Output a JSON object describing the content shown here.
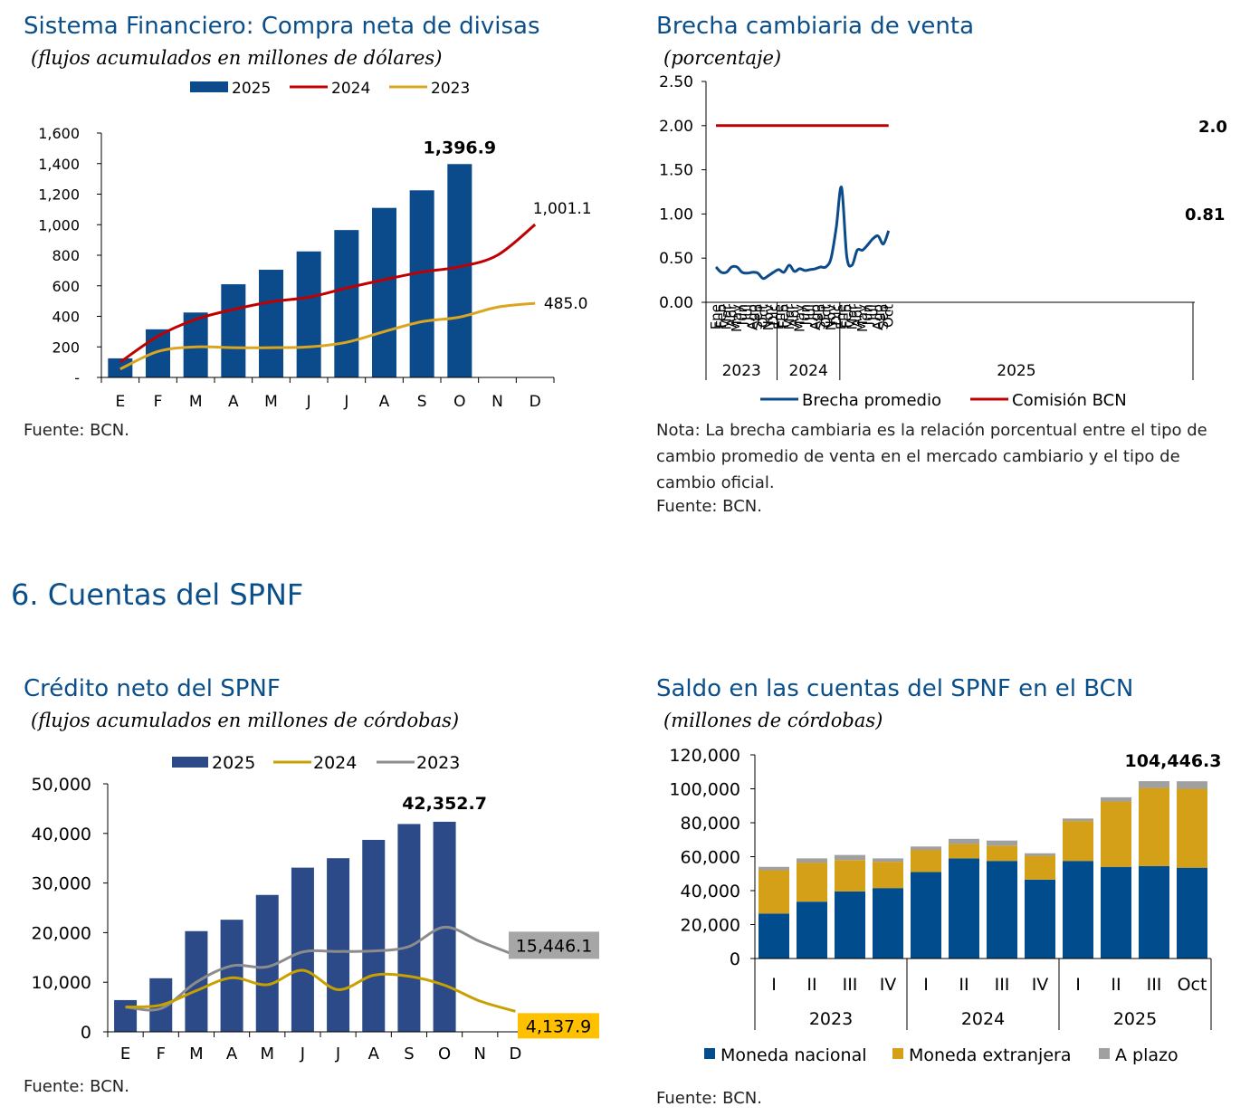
{
  "section_title": "6.  Cuentas del SPNF",
  "charts": {
    "divisas": {
      "title": "Sistema Financiero: Compra neta de divisas",
      "subtitle": "(flujos acumulados en millones de dólares)",
      "source": "Fuente: BCN."
    },
    "brecha": {
      "title": "Brecha cambiaria de venta",
      "subtitle": "(porcentaje)",
      "note": "Nota: La brecha cambiaria es la relación porcentual entre el tipo de cambio promedio de venta en el mercado cambiario y el tipo de cambio oficial.",
      "source": "Fuente: BCN."
    },
    "credito": {
      "title": "Crédito neto del SPNF",
      "subtitle": "(flujos acumulados en millones de córdobas)",
      "source": "Fuente: BCN."
    },
    "saldo": {
      "title": "Saldo en las cuentas del SPNF en el BCN",
      "subtitle": "(millones de córdobas)",
      "source": "Fuente: BCN."
    }
  },
  "colors": {
    "navy": "#0B4A8B",
    "red": "#C00000",
    "gold": "#DAA520",
    "title_blue": "#0B4F8A",
    "credit_bar": "#2B4A87",
    "credit_gold": "#C9A000",
    "gray": "#8C8C8C",
    "mn": "#004C8C",
    "me": "#D4A017",
    "plazo": "#A0A0A0"
  },
  "chart_data": [
    {
      "id": "divisas",
      "type": "bar",
      "categories": [
        "E",
        "F",
        "M",
        "A",
        "M",
        "J",
        "J",
        "A",
        "S",
        "O",
        "N",
        "D"
      ],
      "series": [
        {
          "name": "2025",
          "kind": "bar",
          "values": [
            125,
            315,
            425,
            610,
            705,
            825,
            965,
            1110,
            1225,
            1396.9,
            null,
            null
          ]
        },
        {
          "name": "2024",
          "kind": "line",
          "values": [
            100,
            270,
            380,
            445,
            495,
            525,
            585,
            640,
            690,
            725,
            800,
            1001.1
          ]
        },
        {
          "name": "2023",
          "kind": "line",
          "values": [
            55,
            170,
            200,
            195,
            195,
            200,
            230,
            300,
            365,
            395,
            460,
            485.0
          ]
        }
      ],
      "ylim": [
        0,
        1600
      ],
      "yticks": [
        0,
        200,
        400,
        600,
        800,
        1000,
        1200,
        1400,
        1600
      ],
      "ytick_labels": [
        "-",
        "200",
        "400",
        "600",
        "800",
        "1,000",
        "1,200",
        "1,400",
        "1,600"
      ],
      "annotations": [
        {
          "series": "2025",
          "index": 9,
          "text": "1,396.9"
        },
        {
          "series": "2024",
          "index": 11,
          "text": "1,001.1"
        },
        {
          "series": "2023",
          "index": 11,
          "text": "485.0"
        }
      ],
      "legend": [
        "2025",
        "2024",
        "2023"
      ],
      "legend_position": "top"
    },
    {
      "id": "brecha",
      "type": "line",
      "years": [
        "2023",
        "2024",
        "2025"
      ],
      "months_full": [
        "Ene",
        "Feb",
        "Mar",
        "Abr",
        "May",
        "Jun",
        "Jul",
        "Ago",
        "Sep",
        "Oct",
        "Nov",
        "Dic"
      ],
      "months_2025": [
        "Ene",
        "Feb",
        "Mar",
        "Abr",
        "May",
        "Jun",
        "Jul",
        "Ago",
        "Sep",
        "Oct"
      ],
      "series": [
        {
          "name": "Brecha promedio",
          "values": [
            0.4,
            0.34,
            0.34,
            0.4,
            0.4,
            0.34,
            0.33,
            0.34,
            0.33,
            0.27,
            0.3,
            0.34,
            0.37,
            0.34,
            0.42,
            0.35,
            0.38,
            0.36,
            0.37,
            0.38,
            0.4,
            0.4,
            0.5,
            0.85,
            1.3,
            0.52,
            0.42,
            0.59,
            0.59,
            0.65,
            0.72,
            0.75,
            0.66,
            0.81
          ]
        },
        {
          "name": "Comisión BCN",
          "values": [
            2.0,
            2.0,
            2.0,
            2.0,
            2.0,
            2.0,
            2.0,
            2.0,
            2.0,
            2.0,
            2.0,
            2.0,
            2.0,
            2.0,
            2.0,
            2.0,
            2.0,
            2.0,
            2.0,
            2.0,
            2.0,
            2.0,
            2.0,
            2.0,
            2.0,
            2.0,
            2.0,
            2.0,
            2.0,
            2.0,
            2.0,
            2.0,
            2.0,
            2.0
          ]
        }
      ],
      "ylim": [
        0,
        2.5
      ],
      "yticks": [
        0,
        0.5,
        1.0,
        1.5,
        2.0,
        2.5
      ],
      "ytick_labels": [
        "0.00",
        "0.50",
        "1.00",
        "1.50",
        "2.00",
        "2.50"
      ],
      "annotations": [
        {
          "series": "Comisión BCN",
          "text": "2.0"
        },
        {
          "series": "Brecha promedio",
          "text": "0.81"
        }
      ],
      "legend": [
        "Brecha promedio",
        "Comisión BCN"
      ],
      "legend_position": "bottom"
    },
    {
      "id": "credito",
      "type": "bar",
      "categories": [
        "E",
        "F",
        "M",
        "A",
        "M",
        "J",
        "J",
        "A",
        "S",
        "O",
        "N",
        "D"
      ],
      "series": [
        {
          "name": "2025",
          "kind": "bar",
          "values": [
            6400,
            10800,
            20300,
            22600,
            27600,
            33100,
            35000,
            38700,
            41900,
            42352.7,
            null,
            null
          ]
        },
        {
          "name": "2024",
          "kind": "line",
          "values": [
            5000,
            5400,
            8300,
            10900,
            9500,
            12400,
            8500,
            11400,
            11200,
            9400,
            6200,
            4137.9
          ]
        },
        {
          "name": "2023",
          "kind": "line",
          "values": [
            5000,
            4700,
            10000,
            13300,
            13100,
            16100,
            16200,
            16300,
            17200,
            21100,
            18200,
            15446.1
          ]
        }
      ],
      "ylim": [
        0,
        50000
      ],
      "yticks": [
        0,
        10000,
        20000,
        30000,
        40000,
        50000
      ],
      "ytick_labels": [
        "0",
        "10,000",
        "20,000",
        "30,000",
        "40,000",
        "50,000"
      ],
      "annotations": [
        {
          "series": "2025",
          "index": 9,
          "text": "42,352.7"
        },
        {
          "series": "2023",
          "index": 11,
          "text": "15,446.1"
        },
        {
          "series": "2024",
          "index": 11,
          "text": "4,137.9"
        }
      ],
      "legend": [
        "2025",
        "2024",
        "2023"
      ],
      "legend_position": "top"
    },
    {
      "id": "saldo",
      "type": "bar",
      "stacked": true,
      "categories": [
        "I",
        "II",
        "III",
        "IV",
        "I",
        "II",
        "III",
        "IV",
        "I",
        "II",
        "III",
        "Oct"
      ],
      "groups": [
        "2023",
        "2024",
        "2025"
      ],
      "series": [
        {
          "name": "Moneda nacional",
          "values": [
            26500,
            33500,
            39500,
            41500,
            51000,
            59000,
            57500,
            46500,
            57500,
            54000,
            54500,
            53500
          ]
        },
        {
          "name": "Moneda extranjera",
          "values": [
            25500,
            23000,
            18500,
            15500,
            13000,
            8500,
            9000,
            14000,
            23500,
            38500,
            46000,
            46500
          ]
        },
        {
          "name": "A plazo",
          "values": [
            2000,
            2500,
            3000,
            2000,
            2000,
            3000,
            3000,
            1500,
            1500,
            2500,
            4000,
            4446.3
          ]
        }
      ],
      "ylim": [
        0,
        120000
      ],
      "yticks": [
        0,
        20000,
        40000,
        60000,
        80000,
        100000,
        120000
      ],
      "ytick_labels": [
        "0",
        "20,000",
        "40,000",
        "60,000",
        "80,000",
        "100,000",
        "120,000"
      ],
      "annotations": [
        {
          "index": 11,
          "text": "104,446.3"
        }
      ],
      "legend": [
        "Moneda nacional",
        "Moneda extranjera",
        "A plazo"
      ],
      "legend_position": "bottom"
    }
  ]
}
